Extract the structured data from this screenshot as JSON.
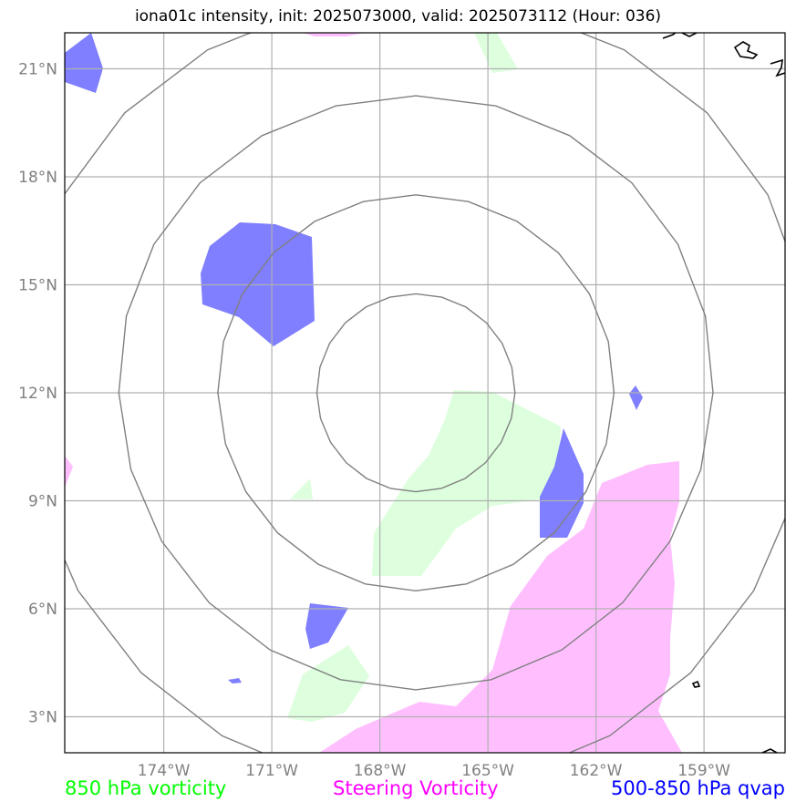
{
  "title": "iona01c intensity, init: 2025073000, valid: 2025073112 (Hour: 036)",
  "map": {
    "lon_min": -176.75,
    "lon_max": -156.75,
    "lat_min": 2,
    "lat_max": 22,
    "lon_ticks": [
      {
        "value": -174,
        "label": "174°W"
      },
      {
        "value": -171,
        "label": "171°W"
      },
      {
        "value": -168,
        "label": "168°W"
      },
      {
        "value": -165,
        "label": "165°W"
      },
      {
        "value": -162,
        "label": "162°W"
      },
      {
        "value": -159,
        "label": "159°W"
      }
    ],
    "lat_ticks": [
      {
        "value": 3,
        "label": "3°N"
      },
      {
        "value": 6,
        "label": "6°N"
      },
      {
        "value": 9,
        "label": "9°N"
      },
      {
        "value": 12,
        "label": "12°N"
      },
      {
        "value": 15,
        "label": "15°N"
      },
      {
        "value": 18,
        "label": "18°N"
      },
      {
        "value": 21,
        "label": "21°N"
      }
    ],
    "range_rings": {
      "center": {
        "lon": -167.0,
        "lat": 12.0
      },
      "radii_deg": [
        2.75,
        5.5,
        8.25,
        11.0
      ],
      "color": "#808080"
    },
    "colors": {
      "vorticity_850": "#ddffdd",
      "steering_vorticity": "#ffbfff",
      "qvap_500_850": "#7f7fff",
      "grid": "#b0b0b0",
      "coast": "#000000"
    }
  },
  "legend": {
    "vorticity_850": {
      "label": "850 hPa vorticity",
      "color": "#00ff00"
    },
    "steering": {
      "label": "Steering Vorticity",
      "color": "#ff00ff"
    },
    "qvap": {
      "label": "500-850 hPa qvap",
      "color": "#0000ff"
    }
  }
}
